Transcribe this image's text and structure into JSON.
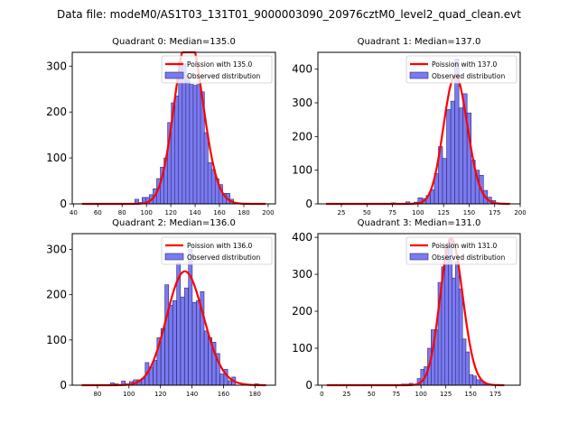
{
  "suptitle": "Data file: modeM0/AS1T03_131T01_9000003090_20976cztM0_level2_quad_clean.evt",
  "colors": {
    "bar_fill": "#7b7bf0",
    "bar_edge": "#2a2a7a",
    "poisson_line": "#ff0000"
  },
  "chart_data": [
    {
      "type": "bar",
      "title": "Quadrant 0: Median=135.0",
      "median": 135.0,
      "xlim": [
        39,
        206
      ],
      "ylim": [
        0,
        330
      ],
      "xticks": [
        40,
        60,
        80,
        100,
        120,
        140,
        160,
        180,
        200
      ],
      "yticks": [
        0,
        100,
        200,
        300
      ],
      "legend": {
        "placement": "top-right",
        "entries": [
          "Poission with 135.0",
          "Observed distribution"
        ]
      },
      "bin_width": 3.2,
      "bins": [
        [
          92,
          10
        ],
        [
          95,
          3
        ],
        [
          98,
          14
        ],
        [
          101,
          14
        ],
        [
          104,
          20
        ],
        [
          107,
          33
        ],
        [
          110,
          55
        ],
        [
          113,
          80
        ],
        [
          116,
          100
        ],
        [
          119,
          177
        ],
        [
          122,
          220
        ],
        [
          125,
          235
        ],
        [
          128,
          310
        ],
        [
          131,
          305
        ],
        [
          134,
          278
        ],
        [
          137,
          260
        ],
        [
          140,
          258
        ],
        [
          143,
          260
        ],
        [
          146,
          244
        ],
        [
          149,
          155
        ],
        [
          152,
          90
        ],
        [
          155,
          75
        ],
        [
          158,
          55
        ],
        [
          161,
          42
        ],
        [
          164,
          23
        ],
        [
          167,
          23
        ],
        [
          170,
          10
        ],
        [
          173,
          3
        ]
      ],
      "poisson_range": [
        47,
        198
      ]
    },
    {
      "type": "bar",
      "title": "Quadrant 1: Median=137.0",
      "median": 137.0,
      "xlim": [
        2,
        200
      ],
      "ylim": [
        0,
        450
      ],
      "xticks": [
        25,
        50,
        75,
        100,
        125,
        150,
        175,
        200
      ],
      "yticks": [
        0,
        100,
        200,
        300,
        400
      ],
      "legend": {
        "placement": "top-right",
        "entries": [
          "Poission with 137.0",
          "Observed distribution"
        ]
      },
      "bin_width": 4,
      "bins": [
        [
          68,
          2
        ],
        [
          76,
          3
        ],
        [
          90,
          6
        ],
        [
          98,
          5
        ],
        [
          102,
          18
        ],
        [
          106,
          16
        ],
        [
          110,
          25
        ],
        [
          114,
          42
        ],
        [
          118,
          90
        ],
        [
          122,
          170
        ],
        [
          126,
          135
        ],
        [
          130,
          280
        ],
        [
          134,
          305
        ],
        [
          138,
          430
        ],
        [
          142,
          285
        ],
        [
          146,
          327
        ],
        [
          150,
          270
        ],
        [
          154,
          130
        ],
        [
          158,
          100
        ],
        [
          162,
          85
        ],
        [
          166,
          40
        ],
        [
          170,
          20
        ],
        [
          174,
          10
        ],
        [
          178,
          3
        ]
      ],
      "poisson_range": [
        10,
        190
      ]
    },
    {
      "type": "bar",
      "title": "Quadrant 2: Median=136.0",
      "median": 136.0,
      "xlim": [
        64,
        193
      ],
      "ylim": [
        0,
        335
      ],
      "xticks": [
        80,
        100,
        120,
        140,
        160,
        180
      ],
      "yticks": [
        0,
        100,
        200,
        300
      ],
      "legend": {
        "placement": "top-right",
        "entries": [
          "Poission with 136.0",
          "Observed distribution"
        ]
      },
      "bin_width": 2.4,
      "bins": [
        [
          89.5,
          5
        ],
        [
          92,
          3
        ],
        [
          96.5,
          9
        ],
        [
          99,
          3
        ],
        [
          101.5,
          8
        ],
        [
          104,
          12
        ],
        [
          106.5,
          12
        ],
        [
          109,
          15
        ],
        [
          111.5,
          50
        ],
        [
          114,
          40
        ],
        [
          116.5,
          55
        ],
        [
          119,
          105
        ],
        [
          121.5,
          125
        ],
        [
          124,
          222
        ],
        [
          126.5,
          177
        ],
        [
          129,
          187
        ],
        [
          131.5,
          270
        ],
        [
          134,
          195
        ],
        [
          136.5,
          215
        ],
        [
          139,
          300
        ],
        [
          141.5,
          183
        ],
        [
          144,
          187
        ],
        [
          146.5,
          207
        ],
        [
          149,
          120
        ],
        [
          151.5,
          105
        ],
        [
          154,
          95
        ],
        [
          156.5,
          70
        ],
        [
          159,
          25
        ],
        [
          161.5,
          35
        ],
        [
          164,
          10
        ],
        [
          166.5,
          18
        ],
        [
          181,
          3
        ]
      ],
      "poisson_range": [
        70,
        187
      ]
    },
    {
      "type": "bar",
      "title": "Quadrant 3: Median=131.0",
      "median": 131.0,
      "xlim": [
        -4,
        200
      ],
      "ylim": [
        0,
        410
      ],
      "xticks": [
        0,
        25,
        50,
        75,
        100,
        125,
        150,
        175
      ],
      "yticks": [
        0,
        100,
        200,
        300,
        400
      ],
      "legend": {
        "placement": "top-right",
        "entries": [
          "Poission with 131.0",
          "Observed distribution"
        ]
      },
      "bin_width": 3.7,
      "bins": [
        [
          82,
          3
        ],
        [
          86,
          3
        ],
        [
          90,
          5
        ],
        [
          98,
          18
        ],
        [
          101.5,
          43
        ],
        [
          105,
          50
        ],
        [
          108.5,
          100
        ],
        [
          112,
          150
        ],
        [
          115.5,
          150
        ],
        [
          119,
          278
        ],
        [
          122.5,
          320
        ],
        [
          126,
          378
        ],
        [
          129.5,
          395
        ],
        [
          133,
          290
        ],
        [
          136.5,
          333
        ],
        [
          140,
          260
        ],
        [
          143.5,
          125
        ],
        [
          147,
          90
        ],
        [
          150.5,
          28
        ],
        [
          154,
          25
        ],
        [
          157.5,
          15
        ],
        [
          161,
          12
        ],
        [
          164.5,
          3
        ]
      ],
      "poisson_range": [
        5,
        184
      ]
    }
  ]
}
